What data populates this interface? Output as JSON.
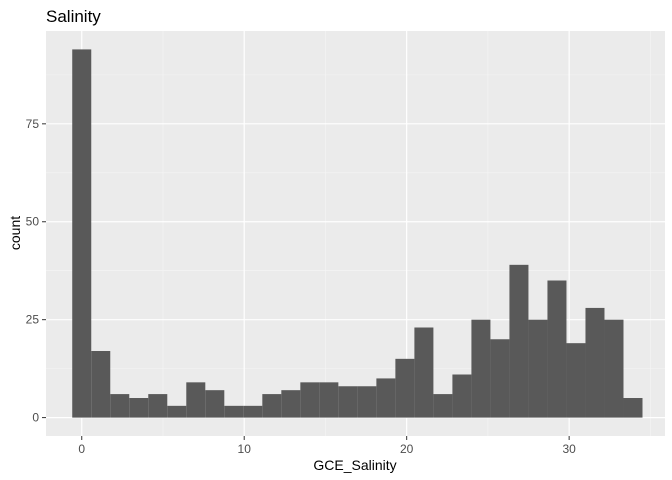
{
  "chart_data": {
    "type": "bar",
    "subtype": "histogram",
    "title": "Salinity",
    "xlabel": "GCE_Salinity",
    "ylabel": "count",
    "bin_width": 1.17,
    "bins": [
      {
        "x": 0.0,
        "count": 94
      },
      {
        "x": 1.17,
        "count": 17
      },
      {
        "x": 2.34,
        "count": 6
      },
      {
        "x": 3.51,
        "count": 5
      },
      {
        "x": 4.68,
        "count": 6
      },
      {
        "x": 5.85,
        "count": 3
      },
      {
        "x": 7.02,
        "count": 9
      },
      {
        "x": 8.19,
        "count": 7
      },
      {
        "x": 9.36,
        "count": 3
      },
      {
        "x": 10.53,
        "count": 3
      },
      {
        "x": 11.7,
        "count": 6
      },
      {
        "x": 12.87,
        "count": 7
      },
      {
        "x": 14.04,
        "count": 9
      },
      {
        "x": 15.21,
        "count": 9
      },
      {
        "x": 16.38,
        "count": 8
      },
      {
        "x": 17.55,
        "count": 8
      },
      {
        "x": 18.72,
        "count": 10
      },
      {
        "x": 19.89,
        "count": 15
      },
      {
        "x": 21.06,
        "count": 23
      },
      {
        "x": 22.23,
        "count": 6
      },
      {
        "x": 23.4,
        "count": 11
      },
      {
        "x": 24.57,
        "count": 25
      },
      {
        "x": 25.74,
        "count": 20
      },
      {
        "x": 26.91,
        "count": 39
      },
      {
        "x": 28.08,
        "count": 25
      },
      {
        "x": 29.25,
        "count": 35
      },
      {
        "x": 30.42,
        "count": 19
      },
      {
        "x": 31.59,
        "count": 28
      },
      {
        "x": 32.76,
        "count": 25
      },
      {
        "x": 33.93,
        "count": 5
      }
    ],
    "xlim": [
      -2.2,
      35.9
    ],
    "ylim": [
      -4.7,
      98.7
    ],
    "x_ticks": [
      0,
      10,
      20,
      30
    ],
    "y_ticks": [
      0,
      25,
      50,
      75
    ],
    "grid": true,
    "legend": "none",
    "colors": {
      "bar": "#595959",
      "panel": "#ebebeb",
      "grid_major": "#ffffff",
      "grid_minor": "#f5f5f5"
    }
  }
}
